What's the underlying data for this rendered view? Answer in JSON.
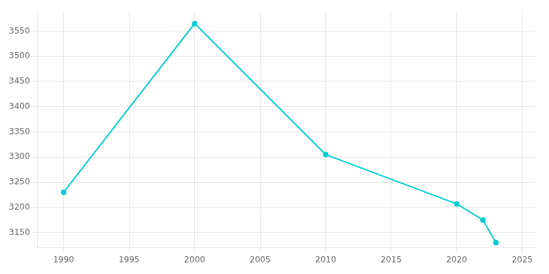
{
  "chart_data": {
    "type": "line",
    "x": [
      1990,
      2000,
      2010,
      2020,
      2022,
      2023
    ],
    "values": [
      3230,
      3565,
      3305,
      3207,
      3175,
      3130
    ],
    "color": "#00CED1",
    "marker": "circle",
    "xlim": [
      1988,
      2026
    ],
    "ylim": [
      3120,
      3590
    ],
    "xticks": [
      1990,
      1995,
      2000,
      2005,
      2010,
      2015,
      2020,
      2025
    ],
    "yticks": [
      3150,
      3200,
      3250,
      3300,
      3350,
      3400,
      3450,
      3500,
      3550
    ],
    "grid": true
  }
}
